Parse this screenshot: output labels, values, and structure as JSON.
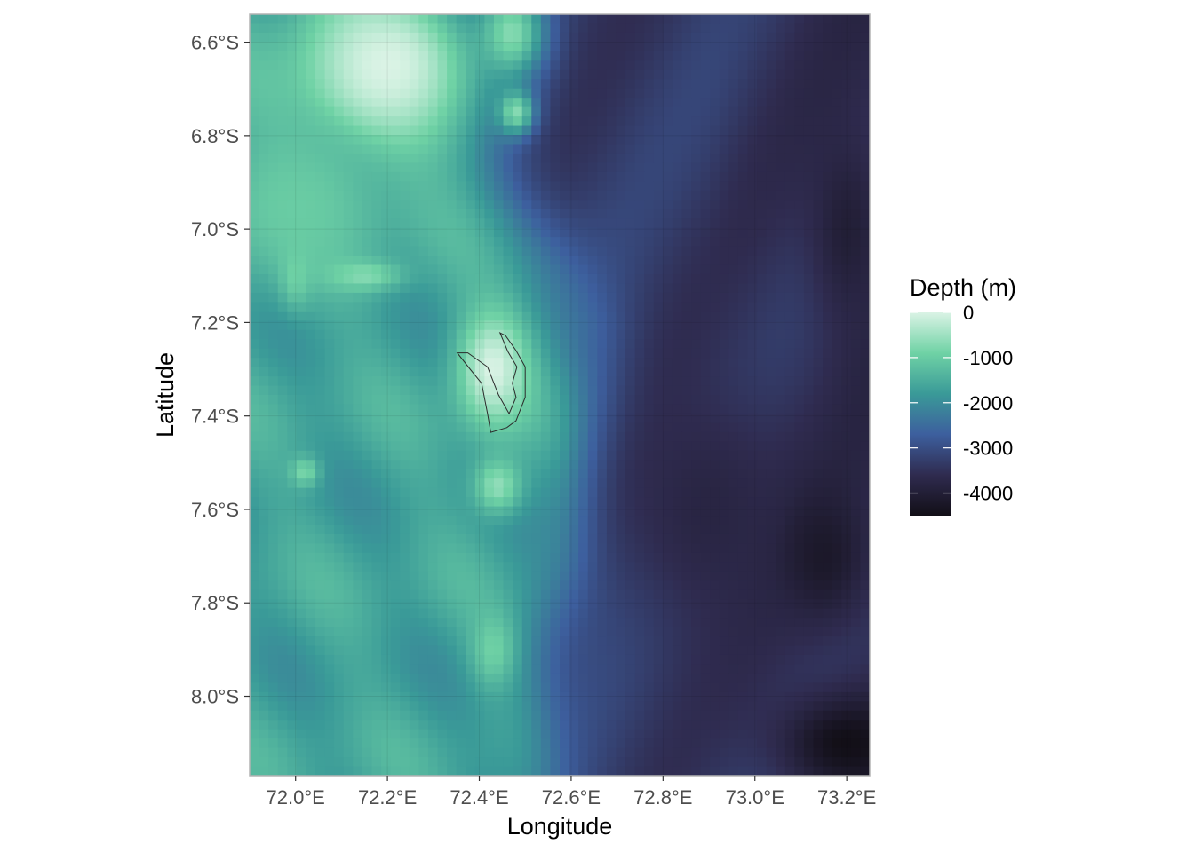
{
  "chart_data": {
    "type": "heatmap",
    "subtype": "bathymetry-map",
    "xlabel": "Longitude",
    "ylabel": "Latitude",
    "xlim": [
      71.9,
      73.25
    ],
    "ylim": [
      -8.17,
      -6.54
    ],
    "x_ticks": [
      {
        "value": 72.0,
        "label": "72.0°E"
      },
      {
        "value": 72.2,
        "label": "72.2°E"
      },
      {
        "value": 72.4,
        "label": "72.4°E"
      },
      {
        "value": 72.6,
        "label": "72.6°E"
      },
      {
        "value": 72.8,
        "label": "72.8°E"
      },
      {
        "value": 73.0,
        "label": "73.0°E"
      },
      {
        "value": 73.2,
        "label": "73.2°E"
      }
    ],
    "y_ticks": [
      {
        "value": -6.6,
        "label": "6.6°S"
      },
      {
        "value": -6.8,
        "label": "6.8°S"
      },
      {
        "value": -7.0,
        "label": "7.0°S"
      },
      {
        "value": -7.2,
        "label": "7.2°S"
      },
      {
        "value": -7.4,
        "label": "7.4°S"
      },
      {
        "value": -7.6,
        "label": "7.6°S"
      },
      {
        "value": -7.8,
        "label": "7.8°S"
      },
      {
        "value": -8.0,
        "label": "8.0°S"
      }
    ],
    "grid": true,
    "legend": {
      "title": "Depth (m)",
      "position": "right",
      "range": [
        -4500,
        0
      ],
      "breaks": [
        {
          "value": 0,
          "label": "0"
        },
        {
          "value": -1000,
          "label": "-1000"
        },
        {
          "value": -2000,
          "label": "-2000"
        },
        {
          "value": -3000,
          "label": "-3000"
        },
        {
          "value": -4000,
          "label": "-4000"
        }
      ],
      "colors": [
        "#daf3e5",
        "#6fd2a5",
        "#3a9a98",
        "#3d5f9e",
        "#2f2b4f",
        "#120f17"
      ]
    },
    "depth_features": [
      {
        "kind": "shallow",
        "lon": 72.2,
        "lat": -6.65,
        "rlon": 0.26,
        "rlat": 0.24,
        "depth": 0
      },
      {
        "kind": "shallow",
        "lon": 72.0,
        "lat": -6.95,
        "rlon": 0.25,
        "rlat": 0.22,
        "depth": -1000
      },
      {
        "kind": "shallow",
        "lon": 72.47,
        "lat": -6.58,
        "rlon": 0.09,
        "rlat": 0.12,
        "depth": -700
      },
      {
        "kind": "shallow",
        "lon": 72.48,
        "lat": -6.75,
        "rlon": 0.05,
        "rlat": 0.06,
        "depth": -700
      },
      {
        "kind": "shallow",
        "lon": 72.43,
        "lat": -7.3,
        "rlon": 0.1,
        "rlat": 0.16,
        "depth": 0
      },
      {
        "kind": "shallow",
        "lon": 72.44,
        "lat": -7.55,
        "rlon": 0.07,
        "rlat": 0.08,
        "depth": -600
      },
      {
        "kind": "shallow",
        "lon": 72.43,
        "lat": -7.9,
        "rlon": 0.06,
        "rlat": 0.1,
        "depth": -900
      },
      {
        "kind": "shallow",
        "lon": 72.15,
        "lat": -7.1,
        "rlon": 0.1,
        "rlat": 0.04,
        "depth": -700
      },
      {
        "kind": "shallow",
        "lon": 72.0,
        "lat": -7.1,
        "rlon": 0.04,
        "rlat": 0.08,
        "depth": -900
      },
      {
        "kind": "shallow",
        "lon": 72.02,
        "lat": -7.52,
        "rlon": 0.04,
        "rlat": 0.04,
        "depth": -800
      },
      {
        "kind": "deep",
        "lon": 73.2,
        "lat": -8.1,
        "rlon": 0.18,
        "rlat": 0.13,
        "depth": -4500
      },
      {
        "kind": "deep",
        "lon": 73.15,
        "lat": -7.7,
        "rlon": 0.12,
        "rlat": 0.18,
        "depth": -4200
      },
      {
        "kind": "deep",
        "lon": 73.2,
        "lat": -7.0,
        "rlon": 0.1,
        "rlat": 0.25,
        "depth": -4000
      },
      {
        "kind": "deep",
        "lon": 72.9,
        "lat": -7.6,
        "rlon": 0.25,
        "rlat": 0.35,
        "depth": -3800
      },
      {
        "kind": "deep",
        "lon": 73.1,
        "lat": -6.7,
        "rlon": 0.08,
        "rlat": 0.12,
        "depth": -3500
      }
    ],
    "outline_polygon": [
      [
        72.352,
        -7.265
      ],
      [
        72.375,
        -7.265
      ],
      [
        72.418,
        -7.295
      ],
      [
        72.442,
        -7.355
      ],
      [
        72.465,
        -7.395
      ],
      [
        72.48,
        -7.36
      ],
      [
        72.472,
        -7.33
      ],
      [
        72.482,
        -7.295
      ],
      [
        72.462,
        -7.262
      ],
      [
        72.445,
        -7.222
      ],
      [
        72.457,
        -7.228
      ],
      [
        72.48,
        -7.26
      ],
      [
        72.5,
        -7.295
      ],
      [
        72.5,
        -7.36
      ],
      [
        72.48,
        -7.41
      ],
      [
        72.46,
        -7.425
      ],
      [
        72.425,
        -7.435
      ],
      [
        72.418,
        -7.395
      ],
      [
        72.405,
        -7.33
      ],
      [
        72.38,
        -7.3
      ]
    ]
  }
}
